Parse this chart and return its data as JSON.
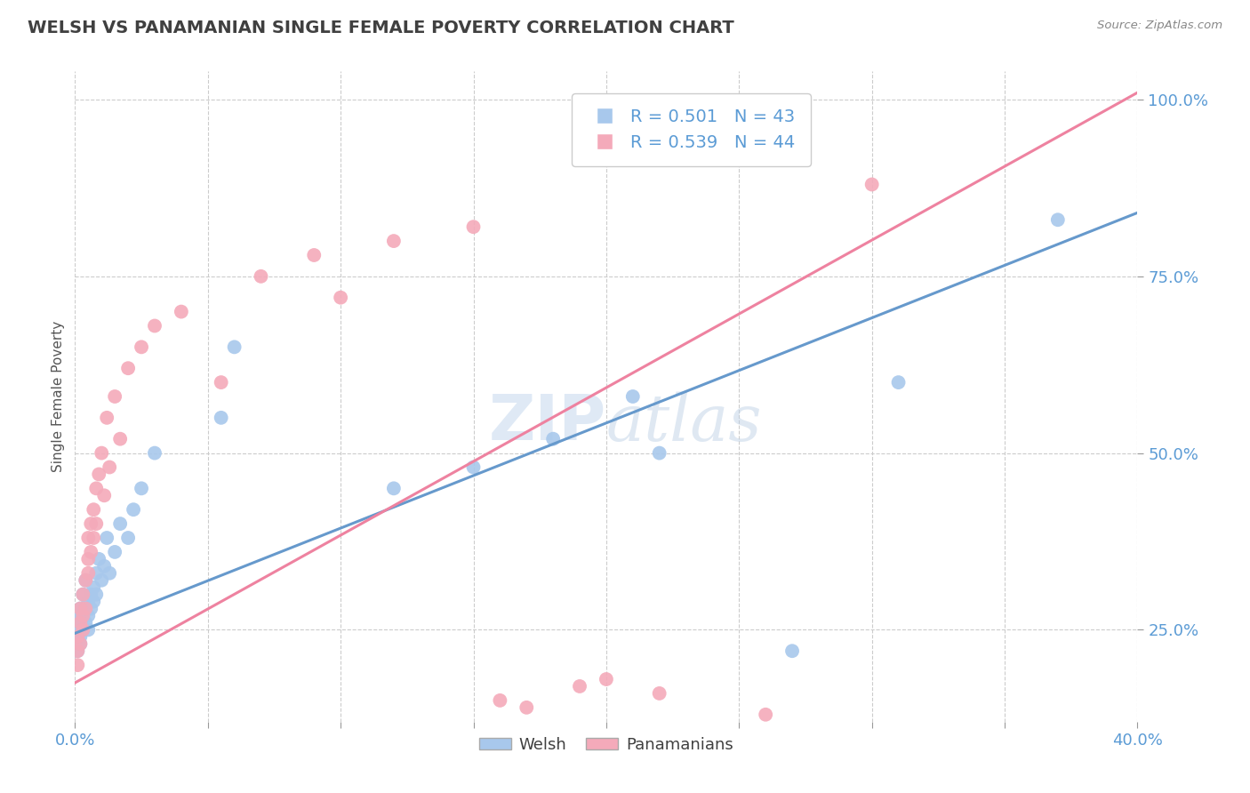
{
  "title": "WELSH VS PANAMANIAN SINGLE FEMALE POVERTY CORRELATION CHART",
  "source": "Source: ZipAtlas.com",
  "ylabel": "Single Female Poverty",
  "xlim": [
    0.0,
    0.4
  ],
  "ylim": [
    0.12,
    1.04
  ],
  "x_ticks": [
    0.0,
    0.05,
    0.1,
    0.15,
    0.2,
    0.25,
    0.3,
    0.35,
    0.4
  ],
  "y_ticks": [
    0.25,
    0.5,
    0.75,
    1.0
  ],
  "y_tick_labels": [
    "25.0%",
    "50.0%",
    "75.0%",
    "100.0%"
  ],
  "welsh_color": "#A8C8EC",
  "panama_color": "#F4AABA",
  "welsh_line_color": "#6699CC",
  "panama_line_color": "#EE82A0",
  "welsh_R": 0.501,
  "welsh_N": 43,
  "panama_R": 0.539,
  "panama_N": 44,
  "watermark_zip": "ZIP",
  "watermark_atlas": "atlas",
  "background_color": "#FFFFFF",
  "grid_color": "#CCCCCC",
  "title_color": "#404040",
  "axis_label_color": "#5B9BD5",
  "welsh_scatter_x": [
    0.001,
    0.001,
    0.001,
    0.002,
    0.002,
    0.002,
    0.002,
    0.003,
    0.003,
    0.003,
    0.004,
    0.004,
    0.004,
    0.005,
    0.005,
    0.005,
    0.006,
    0.006,
    0.007,
    0.007,
    0.008,
    0.008,
    0.009,
    0.01,
    0.011,
    0.012,
    0.013,
    0.015,
    0.017,
    0.02,
    0.022,
    0.025,
    0.03,
    0.055,
    0.06,
    0.12,
    0.15,
    0.18,
    0.21,
    0.22,
    0.27,
    0.31,
    0.37
  ],
  "welsh_scatter_y": [
    0.25,
    0.27,
    0.22,
    0.26,
    0.24,
    0.28,
    0.23,
    0.27,
    0.25,
    0.3,
    0.28,
    0.26,
    0.32,
    0.27,
    0.29,
    0.25,
    0.3,
    0.28,
    0.31,
    0.29,
    0.33,
    0.3,
    0.35,
    0.32,
    0.34,
    0.38,
    0.33,
    0.36,
    0.4,
    0.38,
    0.42,
    0.45,
    0.5,
    0.55,
    0.65,
    0.45,
    0.48,
    0.52,
    0.58,
    0.5,
    0.22,
    0.6,
    0.83
  ],
  "panama_scatter_x": [
    0.001,
    0.001,
    0.001,
    0.002,
    0.002,
    0.002,
    0.003,
    0.003,
    0.003,
    0.004,
    0.004,
    0.005,
    0.005,
    0.005,
    0.006,
    0.006,
    0.007,
    0.007,
    0.008,
    0.008,
    0.009,
    0.01,
    0.011,
    0.012,
    0.013,
    0.015,
    0.017,
    0.02,
    0.025,
    0.03,
    0.04,
    0.055,
    0.07,
    0.09,
    0.1,
    0.12,
    0.15,
    0.16,
    0.17,
    0.19,
    0.2,
    0.22,
    0.26,
    0.3
  ],
  "panama_scatter_y": [
    0.24,
    0.22,
    0.2,
    0.26,
    0.23,
    0.28,
    0.25,
    0.27,
    0.3,
    0.32,
    0.28,
    0.35,
    0.38,
    0.33,
    0.4,
    0.36,
    0.42,
    0.38,
    0.45,
    0.4,
    0.47,
    0.5,
    0.44,
    0.55,
    0.48,
    0.58,
    0.52,
    0.62,
    0.65,
    0.68,
    0.7,
    0.6,
    0.75,
    0.78,
    0.72,
    0.8,
    0.82,
    0.15,
    0.14,
    0.17,
    0.18,
    0.16,
    0.13,
    0.88
  ],
  "welsh_line_x0": 0.0,
  "welsh_line_y0": 0.245,
  "welsh_line_x1": 0.4,
  "welsh_line_y1": 0.84,
  "panama_line_x0": 0.0,
  "panama_line_y0": 0.175,
  "panama_line_x1": 0.4,
  "panama_line_y1": 1.01
}
